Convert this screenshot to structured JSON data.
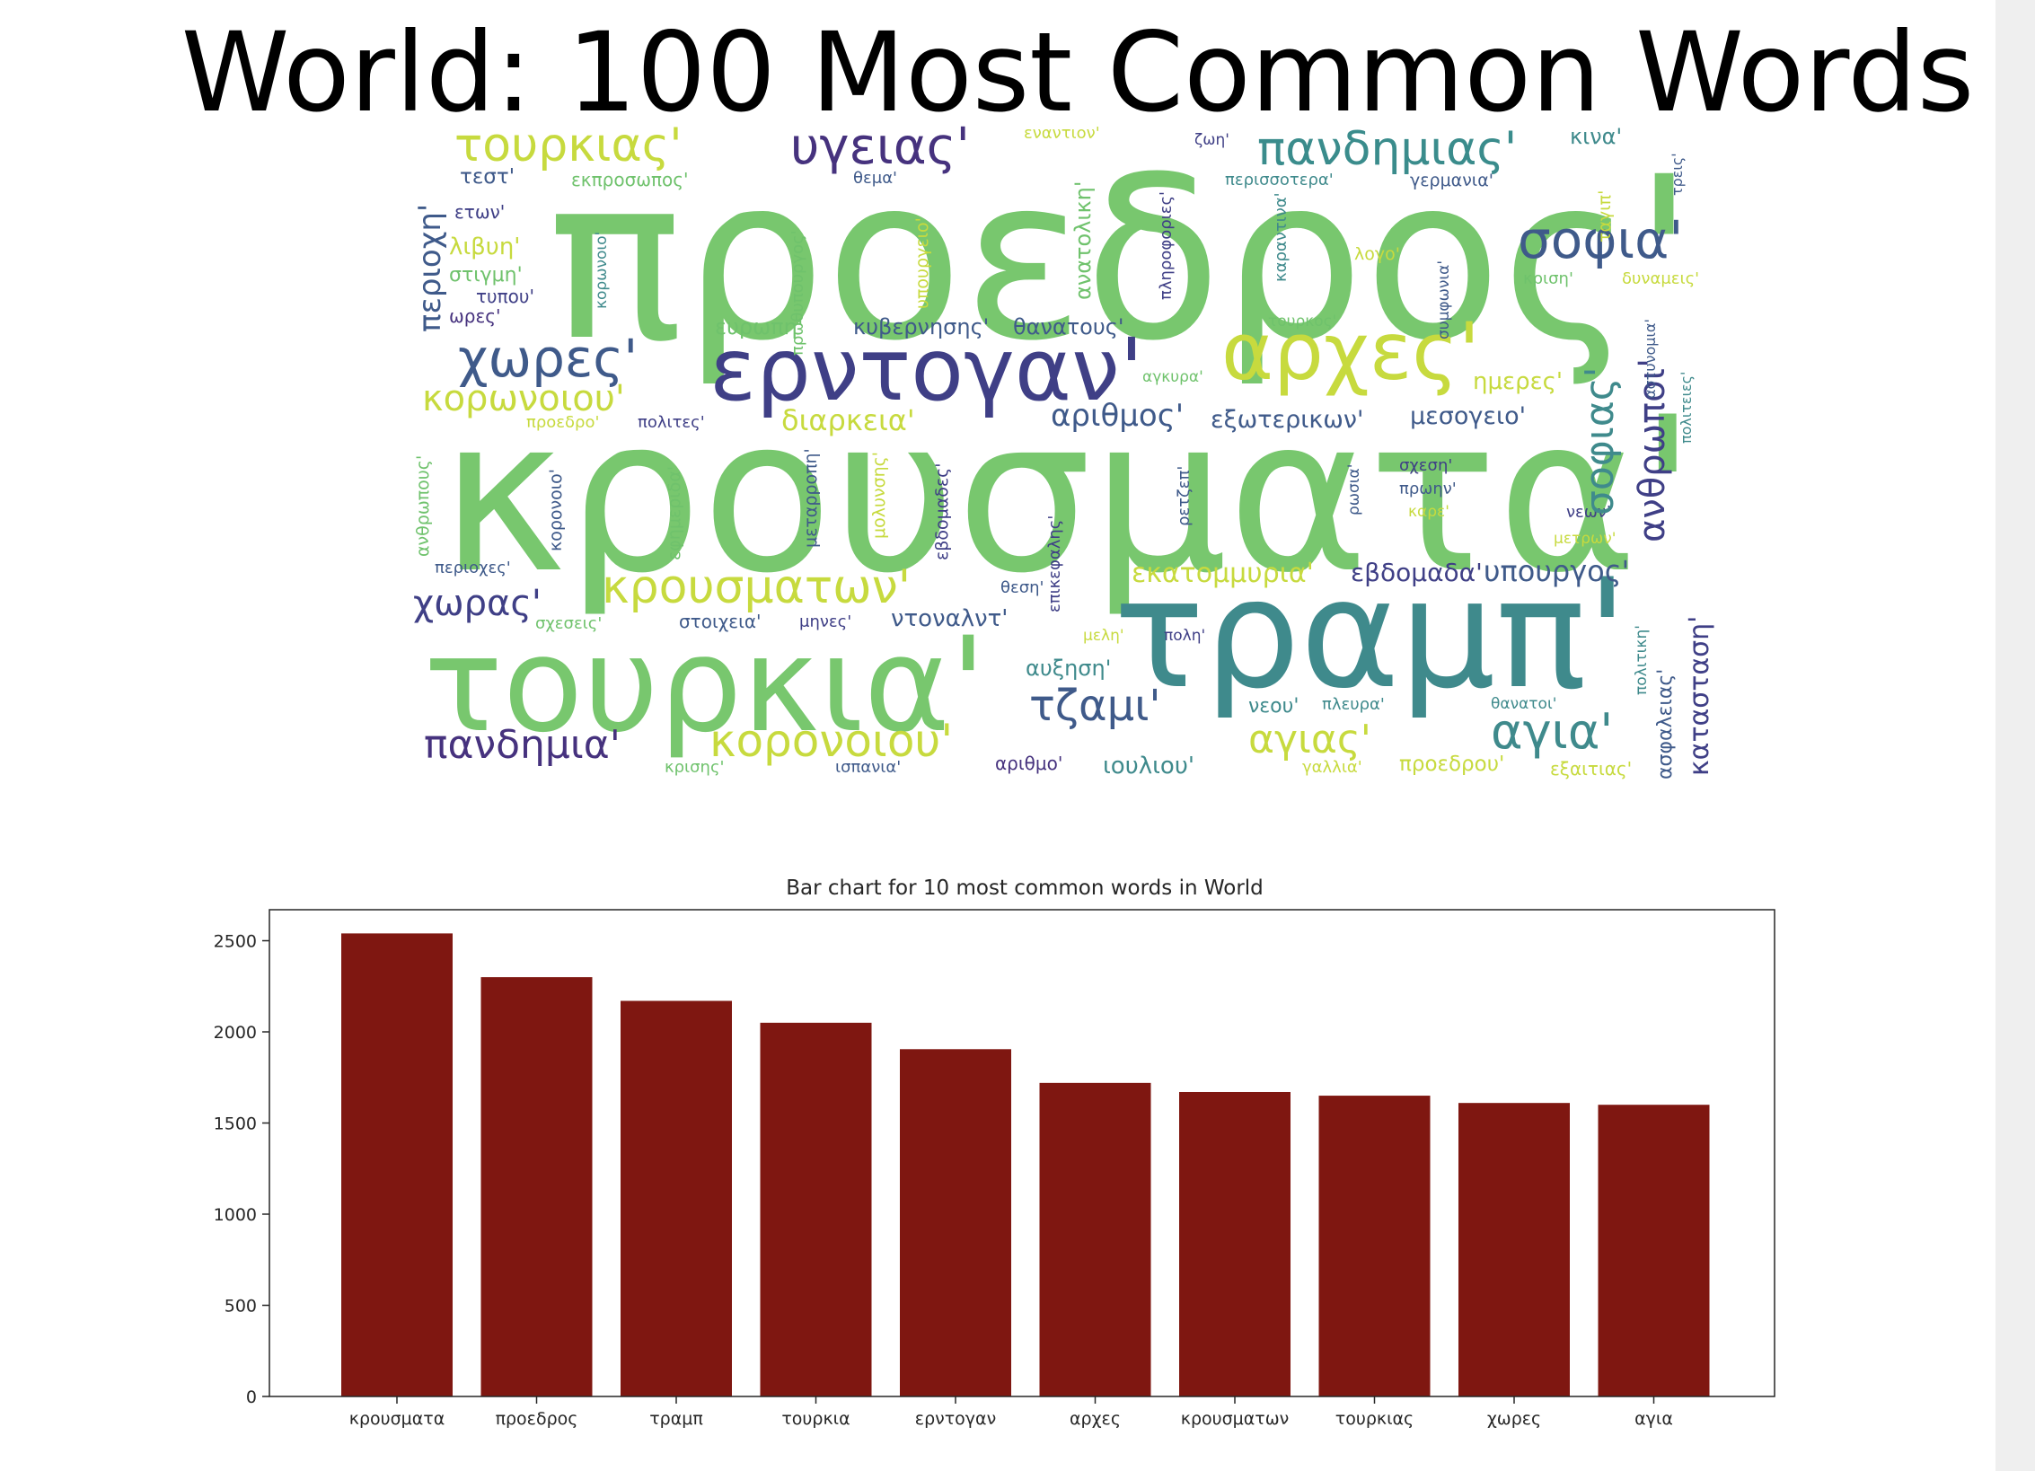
{
  "page_title": "World: 100 Most Common Words",
  "wordcloud": {
    "words": [
      {
        "t": "προεδρος'",
        "s": 250,
        "c": "#78c76e",
        "x": 150,
        "y": 30,
        "r": 0
      },
      {
        "t": "κρουσματα'",
        "s": 238,
        "c": "#78c76e",
        "x": 30,
        "y": 300,
        "r": 0
      },
      {
        "t": "τουρκια'",
        "s": 146,
        "c": "#78c76e",
        "x": 12,
        "y": 556,
        "r": 0
      },
      {
        "t": "τραμπ'",
        "s": 168,
        "c": "#3f8a8c",
        "x": 780,
        "y": 488,
        "r": 0
      },
      {
        "t": "ερντογαν'",
        "s": 96,
        "c": "#3f3f86",
        "x": 330,
        "y": 230,
        "r": 0
      },
      {
        "t": "αρχες'",
        "s": 88,
        "c": "#c7da3e",
        "x": 900,
        "y": 214,
        "r": 0
      },
      {
        "t": "χωρες'",
        "s": 58,
        "c": "#3f5a8a",
        "x": 50,
        "y": 236,
        "r": 0
      },
      {
        "t": "τουρκιας'",
        "s": 52,
        "c": "#c7da3e",
        "x": 46,
        "y": 2,
        "r": 0
      },
      {
        "t": "υγειας'",
        "s": 56,
        "c": "#46327e",
        "x": 420,
        "y": 2,
        "r": 0
      },
      {
        "t": "πανδημιας'",
        "s": 52,
        "c": "#3a8c8c",
        "x": 940,
        "y": 6,
        "r": 0
      },
      {
        "t": "σοφια'",
        "s": 58,
        "c": "#3f5a8a",
        "x": 1230,
        "y": 104,
        "r": 0
      },
      {
        "t": "κρουσματων'",
        "s": 52,
        "c": "#c7da3e",
        "x": 210,
        "y": 494,
        "r": 0
      },
      {
        "t": "κορονοιου'",
        "s": 50,
        "c": "#c7da3e",
        "x": 330,
        "y": 666,
        "r": 0
      },
      {
        "t": "πανδημια'",
        "s": 44,
        "c": "#46327e",
        "x": 12,
        "y": 674,
        "r": 0
      },
      {
        "t": "τζαμι'",
        "s": 48,
        "c": "#3f5a8a",
        "x": 686,
        "y": 628,
        "r": 0
      },
      {
        "t": "αγιας'",
        "s": 44,
        "c": "#c7da3e",
        "x": 930,
        "y": 668,
        "r": 0
      },
      {
        "t": "αγια'",
        "s": 54,
        "c": "#3f8a8c",
        "x": 1200,
        "y": 654,
        "r": 0
      },
      {
        "t": "κορωνοιου'",
        "s": 40,
        "c": "#c7da3e",
        "x": 10,
        "y": 290,
        "r": 0
      },
      {
        "t": "διαρκεια'",
        "s": 32,
        "c": "#c7da3e",
        "x": 410,
        "y": 318,
        "r": 0
      },
      {
        "t": "αριθμος'",
        "s": 34,
        "c": "#3f5a8a",
        "x": 710,
        "y": 312,
        "r": 0
      },
      {
        "t": "εξωτερικων'",
        "s": 27,
        "c": "#3f5a8a",
        "x": 888,
        "y": 320,
        "r": 0
      },
      {
        "t": "μεσογειο'",
        "s": 27,
        "c": "#3f5a8a",
        "x": 1110,
        "y": 316,
        "r": 0
      },
      {
        "t": "χωρας'",
        "s": 40,
        "c": "#3f3f86",
        "x": 0,
        "y": 518,
        "r": 0
      },
      {
        "t": "εκατομμυρια'",
        "s": 30,
        "c": "#c7da3e",
        "x": 800,
        "y": 490,
        "r": 0
      },
      {
        "t": "εβδομαδα'",
        "s": 28,
        "c": "#3f3f86",
        "x": 1044,
        "y": 490,
        "r": 0
      },
      {
        "t": "υπουργος'",
        "s": 32,
        "c": "#3f5a8a",
        "x": 1192,
        "y": 486,
        "r": 0
      },
      {
        "t": "ημερες'",
        "s": 26,
        "c": "#c7da3e",
        "x": 1180,
        "y": 278,
        "r": 0
      },
      {
        "t": "λιβυη'",
        "s": 26,
        "c": "#c7da3e",
        "x": 40,
        "y": 128,
        "r": 0
      },
      {
        "t": "στιγμη'",
        "s": 22,
        "c": "#6fc26c",
        "x": 40,
        "y": 162,
        "r": 0
      },
      {
        "t": "τεστ'",
        "s": 23,
        "c": "#3f5a8a",
        "x": 52,
        "y": 52,
        "r": 0
      },
      {
        "t": "εκπροσωπος'",
        "s": 20,
        "c": "#6fc26c",
        "x": 176,
        "y": 56,
        "r": 0
      },
      {
        "t": "ετων'",
        "s": 20,
        "c": "#3f3f86",
        "x": 46,
        "y": 92,
        "r": 0
      },
      {
        "t": "τυπου'",
        "s": 20,
        "c": "#3f3f86",
        "x": 70,
        "y": 186,
        "r": 0
      },
      {
        "t": "ωρες'",
        "s": 20,
        "c": "#46327e",
        "x": 40,
        "y": 208,
        "r": 0
      },
      {
        "t": "θεμα'",
        "s": 18,
        "c": "#3f5a8a",
        "x": 490,
        "y": 56,
        "r": 0
      },
      {
        "t": "εναντιον'",
        "s": 18,
        "c": "#c7da3e",
        "x": 680,
        "y": 6,
        "r": 0
      },
      {
        "t": "ζωη'",
        "s": 17,
        "c": "#3f3f86",
        "x": 870,
        "y": 14,
        "r": 0
      },
      {
        "t": "κινα'",
        "s": 24,
        "c": "#3f8a8c",
        "x": 1288,
        "y": 6,
        "r": 0
      },
      {
        "t": "περισσοτερα'",
        "s": 18,
        "c": "#3f8a8c",
        "x": 904,
        "y": 58,
        "r": 0
      },
      {
        "t": "γερμανια'",
        "s": 19,
        "c": "#3f5a8a",
        "x": 1110,
        "y": 58,
        "r": 0
      },
      {
        "t": "κριση'",
        "s": 18,
        "c": "#6fc26c",
        "x": 1236,
        "y": 168,
        "r": 0
      },
      {
        "t": "δυναμεις'",
        "s": 18,
        "c": "#c7da3e",
        "x": 1346,
        "y": 168,
        "r": 0
      },
      {
        "t": "λογο'",
        "s": 19,
        "c": "#c7da3e",
        "x": 1048,
        "y": 140,
        "r": 0
      },
      {
        "t": "τουρκος'",
        "s": 17,
        "c": "#6fc26c",
        "x": 952,
        "y": 216,
        "r": 0
      },
      {
        "t": "αγκυρα'",
        "s": 17,
        "c": "#6fc26c",
        "x": 812,
        "y": 278,
        "r": 0
      },
      {
        "t": "ευρωπη'",
        "s": 24,
        "c": "#6fc26c",
        "x": 336,
        "y": 218,
        "r": 0
      },
      {
        "t": "κυβερνησης'",
        "s": 24,
        "c": "#3f5a8a",
        "x": 490,
        "y": 218,
        "r": 0
      },
      {
        "t": "θανατους'",
        "s": 24,
        "c": "#3f5a8a",
        "x": 668,
        "y": 218,
        "r": 0
      },
      {
        "t": "προεδρο'",
        "s": 18,
        "c": "#c7da3e",
        "x": 126,
        "y": 328,
        "r": 0
      },
      {
        "t": "πολιτες'",
        "s": 18,
        "c": "#3f3f86",
        "x": 250,
        "y": 328,
        "r": 0
      },
      {
        "t": "περιοχες'",
        "s": 18,
        "c": "#3f5a8a",
        "x": 24,
        "y": 490,
        "r": 0
      },
      {
        "t": "σχεσεις'",
        "s": 18,
        "c": "#6fc26c",
        "x": 136,
        "y": 552,
        "r": 0
      },
      {
        "t": "στοιχεια'",
        "s": 20,
        "c": "#3f5a8a",
        "x": 296,
        "y": 548,
        "r": 0
      },
      {
        "t": "μηνες'",
        "s": 18,
        "c": "#3f3f86",
        "x": 430,
        "y": 550,
        "r": 0
      },
      {
        "t": "ντοναλντ'",
        "s": 26,
        "c": "#3f5a8a",
        "x": 532,
        "y": 542,
        "r": 0
      },
      {
        "t": "θεση'",
        "s": 18,
        "c": "#3f5a8a",
        "x": 654,
        "y": 512,
        "r": 0
      },
      {
        "t": "αυξηση'",
        "s": 24,
        "c": "#3f8a8c",
        "x": 682,
        "y": 598,
        "r": 0
      },
      {
        "t": "μελη'",
        "s": 17,
        "c": "#c7da3e",
        "x": 746,
        "y": 566,
        "r": 0
      },
      {
        "t": "πολη'",
        "s": 17,
        "c": "#3f3f86",
        "x": 836,
        "y": 566,
        "r": 0
      },
      {
        "t": "νεου'",
        "s": 22,
        "c": "#3f8a8c",
        "x": 930,
        "y": 642,
        "r": 0
      },
      {
        "t": "πλευρα'",
        "s": 18,
        "c": "#3f8a8c",
        "x": 1012,
        "y": 642,
        "r": 0
      },
      {
        "t": "θανατοι'",
        "s": 17,
        "c": "#3f8a8c",
        "x": 1200,
        "y": 642,
        "r": 0
      },
      {
        "t": "ιουλιου'",
        "s": 26,
        "c": "#3f8a8c",
        "x": 768,
        "y": 706,
        "r": 0
      },
      {
        "t": "προεδρου'",
        "s": 23,
        "c": "#c7da3e",
        "x": 1098,
        "y": 706,
        "r": 0
      },
      {
        "t": "εξαιτιας'",
        "s": 20,
        "c": "#c7da3e",
        "x": 1266,
        "y": 712,
        "r": 0
      },
      {
        "t": "γαλλια'",
        "s": 18,
        "c": "#c7da3e",
        "x": 990,
        "y": 712,
        "r": 0
      },
      {
        "t": "αριθμο'",
        "s": 20,
        "c": "#46327e",
        "x": 648,
        "y": 706,
        "r": 0
      },
      {
        "t": "ισπανια'",
        "s": 18,
        "c": "#3f5a8a",
        "x": 470,
        "y": 712,
        "r": 0
      },
      {
        "t": "κρισης'",
        "s": 18,
        "c": "#6fc26c",
        "x": 280,
        "y": 712,
        "r": 0
      },
      {
        "t": "σχεση'",
        "s": 18,
        "c": "#3f3f86",
        "x": 1098,
        "y": 376,
        "r": 0
      },
      {
        "t": "πρωην'",
        "s": 18,
        "c": "#3f5a8a",
        "x": 1098,
        "y": 402,
        "r": 0
      },
      {
        "t": "καρε'",
        "s": 17,
        "c": "#c7da3e",
        "x": 1108,
        "y": 428,
        "r": 0
      },
      {
        "t": "νεων'",
        "s": 18,
        "c": "#3f3f86",
        "x": 1284,
        "y": 428,
        "r": 0
      },
      {
        "t": "μετρων'",
        "s": 17,
        "c": "#c7da3e",
        "x": 1270,
        "y": 458,
        "r": 0
      },
      {
        "t": "περιοχη'",
        "s": 34,
        "c": "#3f5a8a",
        "x": 2,
        "y": 236,
        "r": 1
      },
      {
        "t": "ανθρωπους'",
        "s": 19,
        "c": "#6fc26c",
        "x": 2,
        "y": 486,
        "r": 1
      },
      {
        "t": "κορονοιο'",
        "s": 19,
        "c": "#3f5a8a",
        "x": 150,
        "y": 480,
        "r": 1
      },
      {
        "t": "εφημεριδα'",
        "s": 19,
        "c": "#6fc26c",
        "x": 282,
        "y": 490,
        "r": 1
      },
      {
        "t": "κορωνοιο'",
        "s": 17,
        "c": "#3f8a8c",
        "x": 202,
        "y": 210,
        "r": 1
      },
      {
        "t": "πρωθυπουργος'",
        "s": 18,
        "c": "#6fc26c",
        "x": 420,
        "y": 262,
        "r": 1
      },
      {
        "t": "υπουργειο'",
        "s": 19,
        "c": "#c7da3e",
        "x": 558,
        "y": 210,
        "r": 1
      },
      {
        "t": "μεταρροπη'",
        "s": 19,
        "c": "#3f5a8a",
        "x": 434,
        "y": 476,
        "r": 1
      },
      {
        "t": "μολυνσης'",
        "s": 19,
        "c": "#c7da3e",
        "x": 510,
        "y": 466,
        "r": 1
      },
      {
        "t": "εβδομαδες'",
        "s": 19,
        "c": "#3f3f86",
        "x": 580,
        "y": 490,
        "r": 1
      },
      {
        "t": "ανατολικη'",
        "s": 24,
        "c": "#6fc26c",
        "x": 734,
        "y": 200,
        "r": 1
      },
      {
        "t": "επικεφαλης'",
        "s": 18,
        "c": "#3f3f86",
        "x": 706,
        "y": 548,
        "r": 1
      },
      {
        "t": "πληροφοριες'",
        "s": 18,
        "c": "#3f3f86",
        "x": 830,
        "y": 200,
        "r": 1
      },
      {
        "t": "καραντινα'",
        "s": 18,
        "c": "#3f8a8c",
        "x": 958,
        "y": 180,
        "r": 1
      },
      {
        "t": "ρετζεπ'",
        "s": 18,
        "c": "#3f5a8a",
        "x": 850,
        "y": 452,
        "r": 1
      },
      {
        "t": "ρωσια'",
        "s": 17,
        "c": "#3f5a8a",
        "x": 1040,
        "y": 440,
        "r": 1
      },
      {
        "t": "συμφωνια'",
        "s": 17,
        "c": "#3f5a8a",
        "x": 1140,
        "y": 244,
        "r": 1
      },
      {
        "t": "σοφιας'",
        "s": 44,
        "c": "#3f8a8c",
        "x": 1300,
        "y": 440,
        "r": 1
      },
      {
        "t": "ανθρωποι'",
        "s": 40,
        "c": "#3f3f86",
        "x": 1360,
        "y": 470,
        "r": 1
      },
      {
        "t": "ταγιπ'",
        "s": 19,
        "c": "#c7da3e",
        "x": 1318,
        "y": 136,
        "r": 1
      },
      {
        "t": "τρεις'",
        "s": 16,
        "c": "#3f5a8a",
        "x": 1400,
        "y": 84,
        "r": 1
      },
      {
        "t": "αστυνομια'",
        "s": 16,
        "c": "#3f5a8a",
        "x": 1370,
        "y": 310,
        "r": 1
      },
      {
        "t": "πολιτειες'",
        "s": 16,
        "c": "#3f8a8c",
        "x": 1410,
        "y": 360,
        "r": 1
      },
      {
        "t": "πολιτικη'",
        "s": 17,
        "c": "#3f8a8c",
        "x": 1360,
        "y": 640,
        "r": 1
      },
      {
        "t": "ασφαλειας'",
        "s": 22,
        "c": "#3f5a8a",
        "x": 1384,
        "y": 734,
        "r": 1
      },
      {
        "t": "καταστασ­η'",
        "s": 30,
        "c": "#3f3f86",
        "x": 1418,
        "y": 730,
        "r": 1
      }
    ]
  },
  "chart_data": {
    "type": "bar",
    "title": "Bar chart for 10 most common words in World",
    "categories": [
      "κρουσματα",
      "προεδρος",
      "τραμπ",
      "τουρκια",
      "ερντογαν",
      "αρχες",
      "κρουσματων",
      "τουρκιας",
      "χωρες",
      "αγια"
    ],
    "values": [
      2540,
      2300,
      2170,
      2050,
      1905,
      1720,
      1670,
      1650,
      1610,
      1600
    ],
    "yticks": [
      0,
      500,
      1000,
      1500,
      2000,
      2500
    ],
    "ylim": [
      0,
      2670
    ],
    "bar_color": "#7f1711",
    "xlabel": "",
    "ylabel": ""
  }
}
